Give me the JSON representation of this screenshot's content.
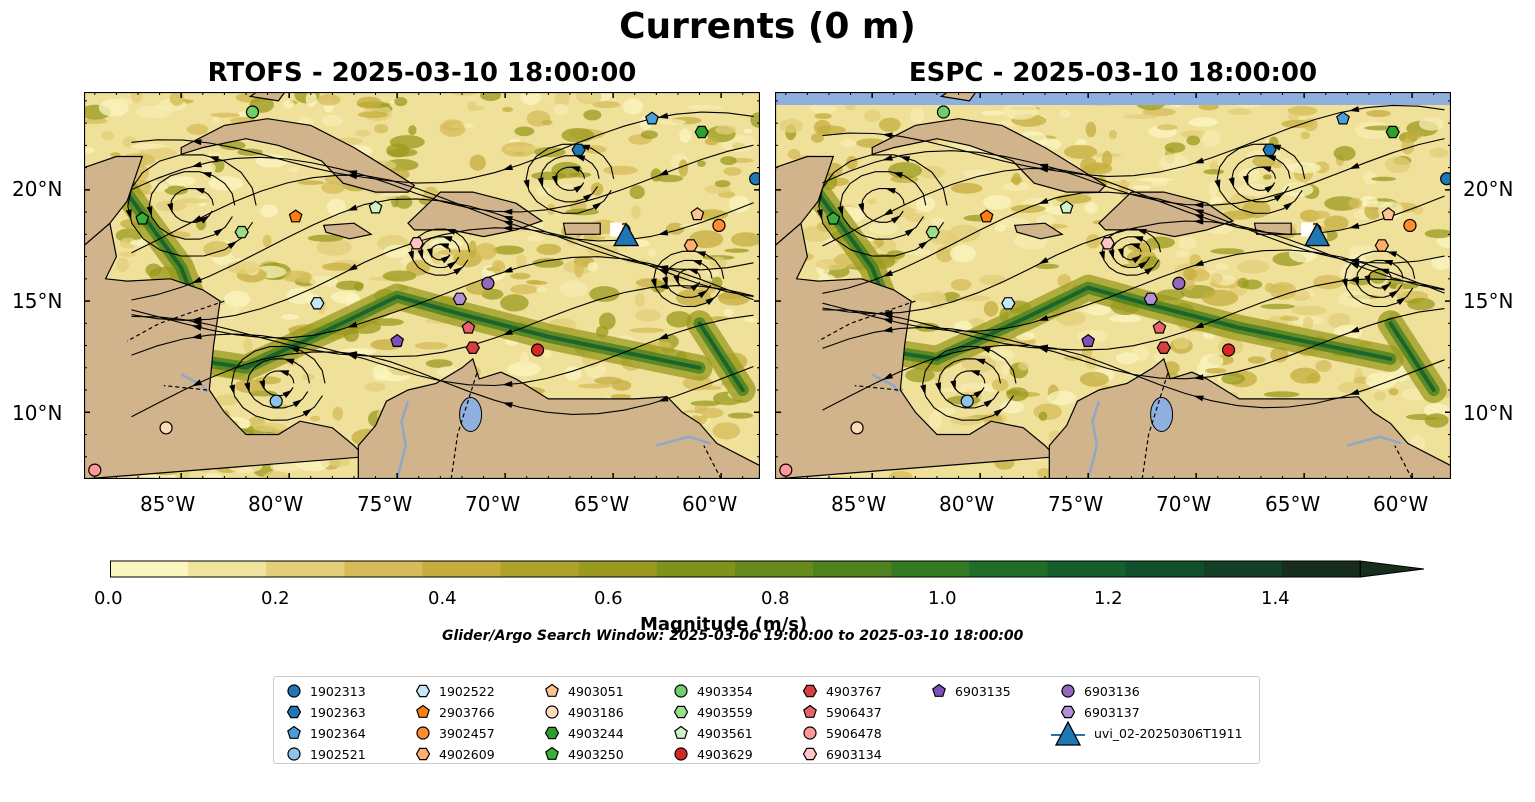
{
  "figure": {
    "title": "Currents (0 m)",
    "panels": [
      {
        "id": "rtofs",
        "title": "RTOFS - 2025-03-10 18:00:00"
      },
      {
        "id": "espc",
        "title": "ESPC - 2025-03-10 18:00:00"
      }
    ],
    "lon_ticks": [
      "85°W",
      "80°W",
      "75°W",
      "70°W",
      "65°W",
      "60°W"
    ],
    "lat_ticks": [
      "20°N",
      "15°N",
      "10°N"
    ],
    "extent": {
      "lon_min": -89.5,
      "lon_max": -58.2,
      "lat_min": 7.0,
      "lat_max": 24.4
    }
  },
  "colorbar": {
    "label": "Magnitude (m/s)",
    "ticks": [
      "0.0",
      "0.2",
      "0.4",
      "0.6",
      "0.8",
      "1.0",
      "1.2",
      "1.4"
    ],
    "range": [
      0,
      1.5
    ],
    "colors": [
      "#fbf5bf",
      "#f0e39d",
      "#e3cf7a",
      "#d5bc58",
      "#c4ad3e",
      "#afa22a",
      "#9a9a1e",
      "#7f921a",
      "#668a1c",
      "#4d821f",
      "#347a22",
      "#1f6e2a",
      "#14602c",
      "#104f2a",
      "#123f25",
      "#172e1c"
    ]
  },
  "search_window": "Glider/Argo Search Window: 2025-03-06 19:00:00 to 2025-03-10 18:00:00",
  "legend": {
    "entries": [
      {
        "label": "1902313",
        "marker": "circle",
        "color": "#1f77b4"
      },
      {
        "label": "1902363",
        "marker": "hexagon",
        "color": "#1f77b4"
      },
      {
        "label": "1902364",
        "marker": "pentagon",
        "color": "#4c9ed9"
      },
      {
        "label": "1902521",
        "marker": "circle",
        "color": "#8fc4ea"
      },
      {
        "label": "1902522",
        "marker": "hexagon",
        "color": "#c6e6fa"
      },
      {
        "label": "2903766",
        "marker": "pentagon",
        "color": "#ff7f0e"
      },
      {
        "label": "3902457",
        "marker": "circle",
        "color": "#ff8c2e"
      },
      {
        "label": "4902609",
        "marker": "hexagon",
        "color": "#ffae6b"
      },
      {
        "label": "4903051",
        "marker": "pentagon",
        "color": "#ffc48f"
      },
      {
        "label": "4903186",
        "marker": "circle",
        "color": "#ffdcb8"
      },
      {
        "label": "4903244",
        "marker": "hexagon",
        "color": "#2ca02c"
      },
      {
        "label": "4903250",
        "marker": "pentagon",
        "color": "#39b03a"
      },
      {
        "label": "4903354",
        "marker": "circle",
        "color": "#6fcf6a"
      },
      {
        "label": "4903559",
        "marker": "hexagon",
        "color": "#98df8a"
      },
      {
        "label": "4903561",
        "marker": "pentagon",
        "color": "#ccf5c2"
      },
      {
        "label": "4903629",
        "marker": "circle",
        "color": "#d62728"
      },
      {
        "label": "4903767",
        "marker": "hexagon",
        "color": "#d84040"
      },
      {
        "label": "5906437",
        "marker": "pentagon",
        "color": "#e8626a"
      },
      {
        "label": "5906478",
        "marker": "circle",
        "color": "#ff9896"
      },
      {
        "label": "6903134",
        "marker": "hexagon",
        "color": "#ffc6c4"
      },
      {
        "label": "6903135",
        "marker": "pentagon",
        "color": "#7e4fbf"
      },
      {
        "label": "6903136",
        "marker": "circle",
        "color": "#9467bd"
      },
      {
        "label": "6903137",
        "marker": "hexagon",
        "color": "#b28fd6"
      },
      {
        "label": "uvi_02-20250306T1911",
        "marker": "triangle",
        "color": "#1f77b4"
      }
    ]
  },
  "floats": [
    {
      "id": "1902313",
      "lon": -58.4,
      "lat": 20.5
    },
    {
      "id": "1902363",
      "lon": -66.6,
      "lat": 21.8
    },
    {
      "id": "1902364",
      "lon": -63.2,
      "lat": 23.2
    },
    {
      "id": "1902521",
      "lon": -80.6,
      "lat": 10.5
    },
    {
      "id": "1902522",
      "lon": -78.7,
      "lat": 14.9
    },
    {
      "id": "2903766",
      "lon": -79.7,
      "lat": 18.8
    },
    {
      "id": "3902457",
      "lon": -60.1,
      "lat": 18.4
    },
    {
      "id": "4902609",
      "lon": -61.4,
      "lat": 17.5
    },
    {
      "id": "4903051",
      "lon": -61.1,
      "lat": 18.9
    },
    {
      "id": "4903186",
      "lon": -64.5,
      "lat": 18.2
    },
    {
      "id": "4903244",
      "lon": -60.9,
      "lat": 22.6
    },
    {
      "id": "4903250",
      "lon": -86.8,
      "lat": 18.7
    },
    {
      "id": "4903354",
      "lon": -81.7,
      "lat": 23.5
    },
    {
      "id": "4903559",
      "lon": -82.2,
      "lat": 18.1
    },
    {
      "id": "4903561",
      "lon": -76.0,
      "lat": 19.2
    },
    {
      "id": "4903629",
      "lon": -68.5,
      "lat": 12.8
    },
    {
      "id": "4903767",
      "lon": -71.5,
      "lat": 12.9
    },
    {
      "id": "5906437",
      "lon": -71.7,
      "lat": 13.8
    },
    {
      "id": "5906478",
      "lon": -89.0,
      "lat": 7.4
    },
    {
      "id": "6903134",
      "lon": -74.1,
      "lat": 17.6
    },
    {
      "id": "6903135",
      "lon": -75.0,
      "lat": 13.2
    },
    {
      "id": "6903136",
      "lon": -70.8,
      "lat": 15.8
    },
    {
      "id": "6903137",
      "lon": -72.1,
      "lat": 15.1
    },
    {
      "id": "4903186b",
      "lon": -85.7,
      "lat": 9.3
    }
  ],
  "glider": {
    "id": "uvi_02-20250306T1911",
    "lon": -64.4,
    "lat": 17.9
  }
}
